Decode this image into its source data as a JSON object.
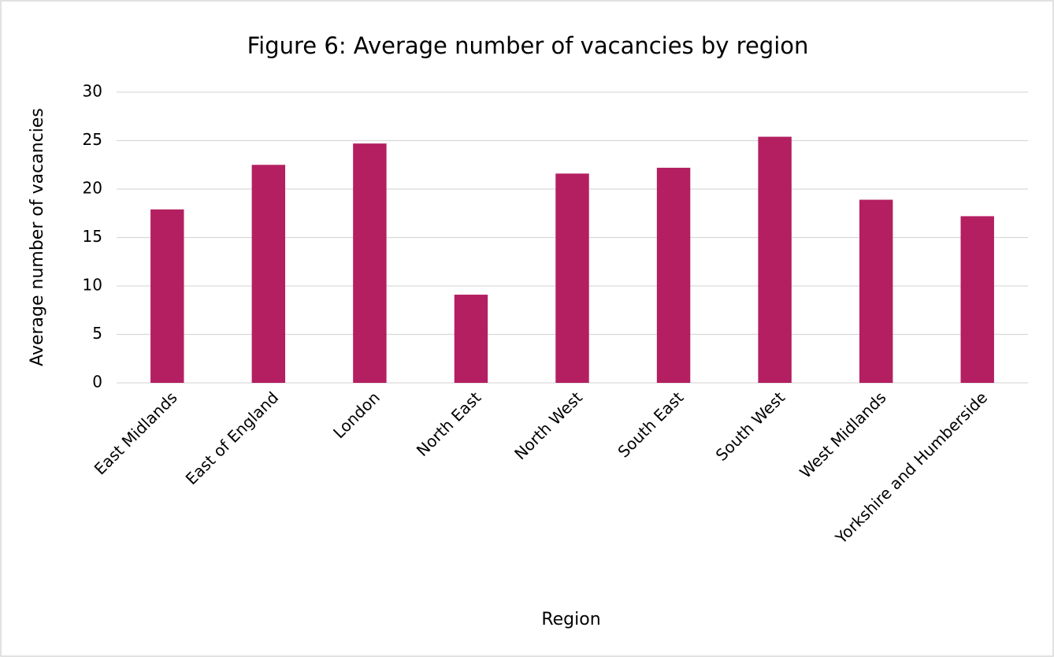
{
  "chart_data": {
    "type": "bar",
    "title": "Figure 6: Average number of vacancies by region",
    "x_label": "Region",
    "y_label": "Average number of vacancies",
    "categories": [
      "East Midlands",
      "East of England",
      "London",
      "North East",
      "North West",
      "South East",
      "South West",
      "West Midlands",
      "Yorkshire and Humberside"
    ],
    "values": [
      17.9,
      22.5,
      24.7,
      9.1,
      21.6,
      22.2,
      25.4,
      18.9,
      17.2
    ],
    "color": "#b41f61",
    "ylim": [
      0,
      30
    ],
    "yticks": [
      0,
      5,
      10,
      15,
      20,
      25,
      30
    ],
    "grid": true
  }
}
